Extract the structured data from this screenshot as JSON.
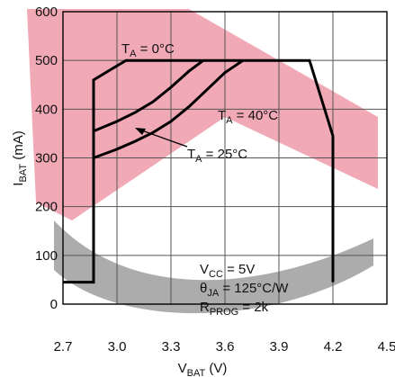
{
  "chart_data": {
    "type": "line",
    "xlabel": "V",
    "xlabel_sub": "BAT",
    "xlabel_unit": " (V)",
    "ylabel": "I",
    "ylabel_sub": "BAT",
    "ylabel_unit": " (mA)",
    "xlim": [
      2.7,
      4.5
    ],
    "ylim": [
      0,
      600
    ],
    "xticks": [
      "2.7",
      "3.0",
      "3.3",
      "3.6",
      "3.9",
      "4.2",
      "4.5"
    ],
    "yticks": [
      "0",
      "100",
      "200",
      "300",
      "400",
      "500",
      "600"
    ],
    "grid": true,
    "series": [
      {
        "name": "TA = 0°C",
        "color": "#000000",
        "points": [
          [
            2.7,
            45
          ],
          [
            2.87,
            45
          ],
          [
            2.87,
            460
          ],
          [
            3.05,
            500
          ],
          [
            4.07,
            500
          ],
          [
            4.2,
            345
          ],
          [
            4.2,
            45
          ]
        ]
      },
      {
        "name": "TA = 25°C",
        "color": "#000000",
        "points": [
          [
            2.87,
            300
          ],
          [
            3.0,
            318
          ],
          [
            3.1,
            334
          ],
          [
            3.2,
            352
          ],
          [
            3.3,
            375
          ],
          [
            3.4,
            405
          ],
          [
            3.5,
            440
          ],
          [
            3.6,
            475
          ],
          [
            3.7,
            500
          ]
        ]
      },
      {
        "name": "TA = 40°C",
        "color": "#000000",
        "points": [
          [
            2.87,
            355
          ],
          [
            3.0,
            375
          ],
          [
            3.1,
            393
          ],
          [
            3.2,
            415
          ],
          [
            3.3,
            445
          ],
          [
            3.4,
            478
          ],
          [
            3.48,
            500
          ]
        ]
      }
    ],
    "annotations": {
      "t0": {
        "main": "T",
        "sub": "A",
        "rest": " = 0°C"
      },
      "t40": {
        "main": "T",
        "sub": "A",
        "rest": " = 40°C"
      },
      "t25": {
        "main": "T",
        "sub": "A",
        "rest": " = 25°C"
      },
      "vcc": {
        "main": "V",
        "sub": "CC",
        "rest": " = 5V"
      },
      "theta": {
        "main": "θ",
        "sub": "JA",
        "rest": " = 125°C/W"
      },
      "rprog": {
        "main": "R",
        "sub": "PROG",
        "rest": " = 2k"
      }
    }
  }
}
